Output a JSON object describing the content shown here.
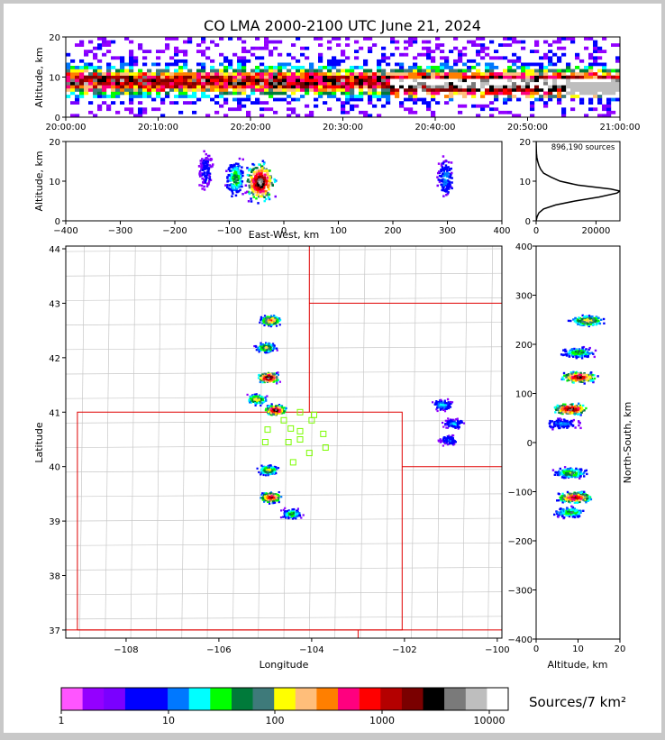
{
  "title": "CO LMA 2000-2100 UTC June 21, 2024",
  "colors": {
    "frame_bg": "#c8c8c8",
    "panel_bg": "#ffffff",
    "state_border": "#e00000",
    "county_border": "#c8c8c8",
    "station_marker": "#7cfc00"
  },
  "chart_data": [
    {
      "type": "heatmap",
      "id": "time_height",
      "ylabel": "Altitude, km",
      "ylim": [
        0,
        20
      ],
      "yticks": [
        "0",
        "10",
        "20"
      ],
      "xticks": [
        "20:00:00",
        "20:10:00",
        "20:20:00",
        "20:30:00",
        "20:40:00",
        "20:50:00",
        "21:00:00"
      ],
      "xlim": [
        "20:00:00",
        "21:00:00"
      ],
      "dense_layer_km": [
        4,
        12
      ]
    },
    {
      "type": "heatmap",
      "id": "east_west_altitude",
      "xlabel": "East-West, km",
      "ylabel": "Altitude, km",
      "xlim": [
        -400,
        400
      ],
      "ylim": [
        0,
        20
      ],
      "xticks": [
        "−400",
        "−300",
        "−200",
        "−100",
        "0",
        "100",
        "200",
        "300",
        "400"
      ],
      "yticks": [
        "0",
        "10",
        "20"
      ],
      "cells": [
        {
          "x": -45,
          "alt": 10,
          "intensity": 1.0
        },
        {
          "x": -90,
          "alt": 11,
          "intensity": 0.45
        },
        {
          "x": -145,
          "alt": 13,
          "intensity": 0.2
        },
        {
          "x": 295,
          "alt": 11,
          "intensity": 0.3
        }
      ]
    },
    {
      "type": "line",
      "id": "altitude_histogram",
      "annotation": "896,190 sources",
      "xlim": [
        0,
        28000
      ],
      "ylim": [
        0,
        20
      ],
      "xticks": [
        "0",
        "20000"
      ],
      "yticks": [
        "0",
        "10",
        "20"
      ],
      "alt_km": [
        0,
        1,
        2,
        3,
        4,
        5,
        6,
        7,
        7.5,
        8,
        9,
        10,
        11,
        12,
        13,
        14,
        15,
        16,
        17,
        18,
        19,
        20
      ],
      "sources": [
        0,
        300,
        900,
        2500,
        6500,
        13000,
        21000,
        27000,
        28000,
        25000,
        14000,
        8000,
        5000,
        2500,
        1500,
        900,
        500,
        250,
        120,
        60,
        25,
        10
      ]
    },
    {
      "type": "heatmap",
      "id": "plan_view",
      "xlabel": "Longitude",
      "ylabel": "Latitude",
      "xlim": [
        -109.3,
        -99.9
      ],
      "ylim": [
        36.85,
        44.05
      ],
      "xticks": [
        "−108",
        "−106",
        "−104",
        "−102",
        "−100"
      ],
      "yticks": [
        "37",
        "38",
        "39",
        "40",
        "41",
        "42",
        "43",
        "44"
      ],
      "cells": [
        {
          "lon": -104.95,
          "lat": 41.65,
          "intensity": 1.0
        },
        {
          "lon": -104.8,
          "lat": 41.05,
          "intensity": 0.95
        },
        {
          "lon": -104.9,
          "lat": 42.7,
          "intensity": 0.7
        },
        {
          "lon": -105.0,
          "lat": 42.2,
          "intensity": 0.55
        },
        {
          "lon": -105.2,
          "lat": 41.25,
          "intensity": 0.6
        },
        {
          "lon": -104.9,
          "lat": 39.45,
          "intensity": 0.85
        },
        {
          "lon": -104.95,
          "lat": 39.95,
          "intensity": 0.55
        },
        {
          "lon": -104.45,
          "lat": 39.15,
          "intensity": 0.45
        },
        {
          "lon": -101.2,
          "lat": 41.15,
          "intensity": 0.35
        },
        {
          "lon": -100.95,
          "lat": 40.8,
          "intensity": 0.3
        },
        {
          "lon": -101.05,
          "lat": 40.5,
          "intensity": 0.25
        }
      ],
      "stations": [
        {
          "lon": -104.25,
          "lat": 41.0
        },
        {
          "lon": -103.95,
          "lat": 40.95
        },
        {
          "lon": -104.6,
          "lat": 40.85
        },
        {
          "lon": -104.0,
          "lat": 40.85
        },
        {
          "lon": -104.95,
          "lat": 40.68
        },
        {
          "lon": -104.45,
          "lat": 40.7
        },
        {
          "lon": -104.25,
          "lat": 40.65
        },
        {
          "lon": -103.75,
          "lat": 40.6
        },
        {
          "lon": -104.5,
          "lat": 40.45
        },
        {
          "lon": -104.25,
          "lat": 40.5
        },
        {
          "lon": -105.0,
          "lat": 40.45
        },
        {
          "lon": -103.7,
          "lat": 40.35
        },
        {
          "lon": -104.05,
          "lat": 40.25
        },
        {
          "lon": -104.4,
          "lat": 40.08
        }
      ]
    },
    {
      "type": "heatmap",
      "id": "altitude_north_south",
      "xlabel": "Altitude, km",
      "ylabel": "North-South, km",
      "xlim": [
        0,
        20
      ],
      "ylim": [
        -400,
        400
      ],
      "xticks": [
        "0",
        "10",
        "20"
      ],
      "yticks": [
        "−400",
        "−300",
        "−200",
        "−100",
        "0",
        "100",
        "200",
        "300",
        "400"
      ],
      "cells": [
        {
          "ns": 250,
          "alt": 12,
          "intensity": 0.6
        },
        {
          "ns": 185,
          "alt": 10,
          "intensity": 0.45
        },
        {
          "ns": 135,
          "alt": 10,
          "intensity": 0.9
        },
        {
          "ns": 70,
          "alt": 8,
          "intensity": 0.95
        },
        {
          "ns": 40,
          "alt": 6,
          "intensity": 0.3
        },
        {
          "ns": -60,
          "alt": 8,
          "intensity": 0.5
        },
        {
          "ns": -110,
          "alt": 9,
          "intensity": 0.85
        },
        {
          "ns": -140,
          "alt": 8,
          "intensity": 0.45
        }
      ]
    }
  ],
  "colorbar": {
    "label": "Sources/7 km²",
    "tick_labels": [
      "1",
      "10",
      "100",
      "1000",
      "10000"
    ],
    "colors": [
      "#ff55ff",
      "#9400ff",
      "#7a00ff",
      "#0000ff",
      "#0000ff",
      "#0078ff",
      "#00ffff",
      "#00ff00",
      "#007a3a",
      "#3e7a7a",
      "#ffff00",
      "#ffbe7a",
      "#ff7f00",
      "#ff007f",
      "#ff0000",
      "#b40000",
      "#7a0000",
      "#000000",
      "#7a7a7a",
      "#bebebe",
      "#ffffff"
    ]
  }
}
